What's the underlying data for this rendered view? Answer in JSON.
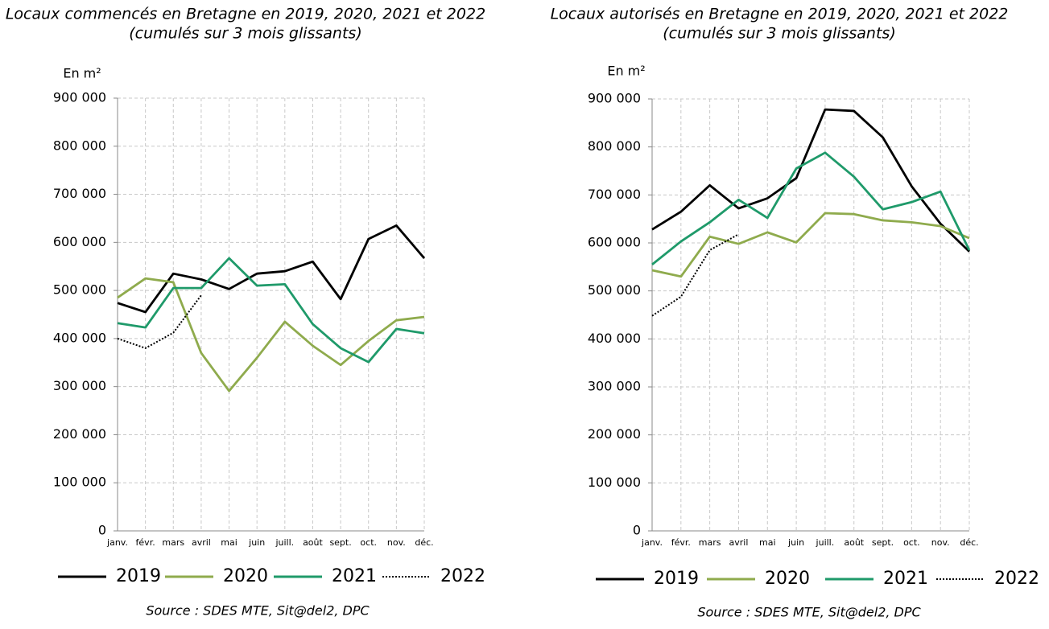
{
  "chart_data": [
    {
      "type": "line",
      "title": "Locaux commencés en Bretagne en 2019, 2020, 2021 et 2022",
      "subtitle": "(cumulés sur 3 mois glissants)",
      "ylabel": "En m²",
      "source": "Source : SDES MTE, Sit@del2, DPC",
      "categories": [
        "janv.",
        "févr.",
        "mars",
        "avril",
        "mai",
        "juin",
        "juill.",
        "août",
        "sept.",
        "oct.",
        "nov.",
        "déc."
      ],
      "ylim": [
        0,
        900000
      ],
      "yticks": [
        0,
        {
          "value": 100000,
          "label": "100 000"
        },
        {
          "value": 200000,
          "label": "200 000"
        },
        {
          "value": 300000,
          "label": "300 000"
        },
        {
          "value": 400000,
          "label": "400 000"
        },
        {
          "value": 500000,
          "label": "500 000"
        },
        {
          "value": 600000,
          "label": "600 000"
        },
        {
          "value": 700000,
          "label": "700 000"
        },
        {
          "value": 800000,
          "label": "800 000"
        },
        {
          "value": 900000,
          "label": "900 000"
        }
      ],
      "grid": true,
      "legend": "bottom",
      "series": [
        {
          "name": "2019",
          "color": "#000000",
          "dash": "solid",
          "values": [
            474000,
            455000,
            535000,
            523000,
            503000,
            535000,
            540000,
            560000,
            482000,
            607000,
            635000,
            567000
          ]
        },
        {
          "name": "2020",
          "color": "#8fab4d",
          "dash": "solid",
          "values": [
            485000,
            525000,
            517000,
            370000,
            291000,
            360000,
            435000,
            385000,
            345000,
            395000,
            438000,
            445000
          ]
        },
        {
          "name": "2021",
          "color": "#1f9a6a",
          "dash": "solid",
          "values": [
            432000,
            423000,
            505000,
            505000,
            567000,
            510000,
            513000,
            430000,
            380000,
            351000,
            420000,
            411000
          ]
        },
        {
          "name": "2022",
          "color": "#000000",
          "dash": "dotted",
          "values": [
            400000,
            380000,
            412000,
            490000,
            null,
            null,
            null,
            null,
            null,
            null,
            null,
            null
          ]
        }
      ]
    },
    {
      "type": "line",
      "title": "Locaux autorisés en Bretagne en 2019, 2020, 2021 et 2022",
      "subtitle": "(cumulés sur 3 mois glissants)",
      "ylabel": "En m²",
      "source": "Source : SDES MTE, Sit@del2, DPC",
      "categories": [
        "janv.",
        "févr.",
        "mars",
        "avril",
        "mai",
        "juin",
        "juill.",
        "août",
        "sept.",
        "oct.",
        "nov.",
        "déc."
      ],
      "ylim": [
        0,
        900000
      ],
      "yticks": [
        0,
        {
          "value": 100000,
          "label": "100 000"
        },
        {
          "value": 200000,
          "label": "200 000"
        },
        {
          "value": 300000,
          "label": "300 000"
        },
        {
          "value": 400000,
          "label": "400 000"
        },
        {
          "value": 500000,
          "label": "500 000"
        },
        {
          "value": 600000,
          "label": "600 000"
        },
        {
          "value": 700000,
          "label": "700 000"
        },
        {
          "value": 800000,
          "label": "800 000"
        },
        {
          "value": 900000,
          "label": "900 000"
        }
      ],
      "grid": true,
      "legend": "bottom",
      "series": [
        {
          "name": "2019",
          "color": "#000000",
          "dash": "solid",
          "values": [
            628000,
            665000,
            720000,
            672000,
            693000,
            735000,
            878000,
            875000,
            820000,
            718000,
            640000,
            582000
          ]
        },
        {
          "name": "2020",
          "color": "#8fab4d",
          "dash": "solid",
          "values": [
            543000,
            530000,
            613000,
            598000,
            622000,
            601000,
            662000,
            660000,
            647000,
            643000,
            635000,
            610000
          ]
        },
        {
          "name": "2021",
          "color": "#1f9a6a",
          "dash": "solid",
          "values": [
            555000,
            603000,
            643000,
            690000,
            652000,
            755000,
            788000,
            738000,
            670000,
            685000,
            707000,
            585000
          ]
        },
        {
          "name": "2022",
          "color": "#000000",
          "dash": "dotted",
          "values": [
            448000,
            488000,
            585000,
            618000,
            null,
            null,
            null,
            null,
            null,
            null,
            null,
            null
          ]
        }
      ]
    }
  ]
}
